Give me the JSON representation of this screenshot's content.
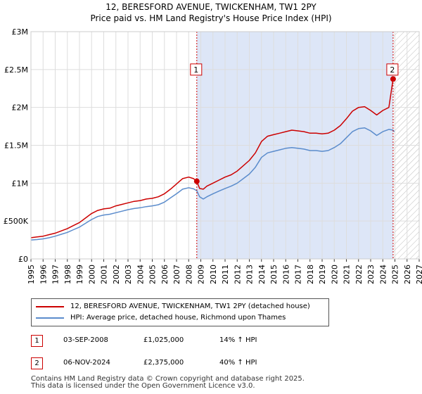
{
  "title_line1": "12, BERESFORD AVENUE, TWICKENHAM, TW1 2PY",
  "title_line2": "Price paid vs. HM Land Registry's House Price Index (HPI)",
  "colors": {
    "property": "#cc0000",
    "hpi": "#5b8ccc",
    "shade": "#dde6f7",
    "grid": "#dddddd"
  },
  "chart_data": {
    "type": "line",
    "title": "12, BERESFORD AVENUE, TWICKENHAM, TW1 2PY — Price paid vs. HM Land Registry's House Price Index (HPI)",
    "xlabel": "",
    "ylabel": "",
    "xlim": [
      1995,
      2027
    ],
    "ylim": [
      0,
      3000000
    ],
    "yticks": [
      {
        "value": 0,
        "label": "£0"
      },
      {
        "value": 500000,
        "label": "£500K"
      },
      {
        "value": 1000000,
        "label": "£1M"
      },
      {
        "value": 1500000,
        "label": "£1.5M"
      },
      {
        "value": 2000000,
        "label": "£2M"
      },
      {
        "value": 2500000,
        "label": "£2.5M"
      },
      {
        "value": 3000000,
        "label": "£3M"
      }
    ],
    "xticks": [
      "1995",
      "1996",
      "1997",
      "1998",
      "1999",
      "2000",
      "2001",
      "2002",
      "2003",
      "2004",
      "2005",
      "2006",
      "2007",
      "2008",
      "2009",
      "2010",
      "2011",
      "2012",
      "2013",
      "2014",
      "2015",
      "2016",
      "2017",
      "2018",
      "2019",
      "2020",
      "2021",
      "2022",
      "2023",
      "2024",
      "2025",
      "2026",
      "2027"
    ],
    "shaded_region": [
      2008.67,
      2024.85
    ],
    "hatched_region": [
      2024.85,
      2027
    ],
    "series": [
      {
        "name": "12, BERESFORD AVENUE, TWICKENHAM, TW1 2PY (detached house)",
        "color": "#cc0000",
        "x": [
          1995,
          1995.5,
          1996,
          1996.5,
          1997,
          1997.5,
          1998,
          1998.5,
          1999,
          1999.5,
          2000,
          2000.5,
          2001,
          2001.5,
          2002,
          2002.5,
          2003,
          2003.5,
          2004,
          2004.5,
          2005,
          2005.5,
          2006,
          2006.5,
          2007,
          2007.5,
          2008,
          2008.4,
          2008.67,
          2008.9,
          2009.2,
          2009.5,
          2010,
          2010.5,
          2011,
          2011.5,
          2012,
          2012.5,
          2013,
          2013.5,
          2014,
          2014.5,
          2015,
          2015.5,
          2016,
          2016.5,
          2017,
          2017.5,
          2018,
          2018.5,
          2019,
          2019.5,
          2020,
          2020.5,
          2021,
          2021.5,
          2022,
          2022.5,
          2023,
          2023.5,
          2024,
          2024.5,
          2024.85,
          2024.95
        ],
        "values": [
          280000,
          290000,
          300000,
          320000,
          340000,
          370000,
          400000,
          440000,
          480000,
          540000,
          600000,
          640000,
          660000,
          670000,
          700000,
          720000,
          740000,
          760000,
          770000,
          790000,
          800000,
          820000,
          860000,
          920000,
          990000,
          1060000,
          1080000,
          1060000,
          1025000,
          930000,
          920000,
          960000,
          1000000,
          1040000,
          1080000,
          1110000,
          1160000,
          1230000,
          1300000,
          1400000,
          1550000,
          1620000,
          1640000,
          1660000,
          1680000,
          1700000,
          1690000,
          1680000,
          1660000,
          1660000,
          1650000,
          1660000,
          1700000,
          1760000,
          1850000,
          1950000,
          2000000,
          2010000,
          1960000,
          1900000,
          1960000,
          2000000,
          2375000,
          2350000
        ]
      },
      {
        "name": "HPI: Average price, detached house, Richmond upon Thames",
        "color": "#5b8ccc",
        "x": [
          1995,
          1995.5,
          1996,
          1996.5,
          1997,
          1997.5,
          1998,
          1998.5,
          1999,
          1999.5,
          2000,
          2000.5,
          2001,
          2001.5,
          2002,
          2002.5,
          2003,
          2003.5,
          2004,
          2004.5,
          2005,
          2005.5,
          2006,
          2006.5,
          2007,
          2007.5,
          2008,
          2008.4,
          2008.67,
          2008.9,
          2009.2,
          2009.5,
          2010,
          2010.5,
          2011,
          2011.5,
          2012,
          2012.5,
          2013,
          2013.5,
          2014,
          2014.5,
          2015,
          2015.5,
          2016,
          2016.5,
          2017,
          2017.5,
          2018,
          2018.5,
          2019,
          2019.5,
          2020,
          2020.5,
          2021,
          2021.5,
          2022,
          2022.5,
          2023,
          2023.5,
          2024,
          2024.5,
          2024.85,
          2024.95
        ],
        "values": [
          250000,
          255000,
          265000,
          280000,
          300000,
          325000,
          350000,
          385000,
          420000,
          470000,
          520000,
          560000,
          580000,
          590000,
          610000,
          630000,
          650000,
          665000,
          675000,
          690000,
          700000,
          715000,
          750000,
          805000,
          860000,
          920000,
          940000,
          925000,
          900000,
          820000,
          790000,
          820000,
          860000,
          895000,
          930000,
          960000,
          1000000,
          1060000,
          1120000,
          1210000,
          1340000,
          1400000,
          1420000,
          1440000,
          1460000,
          1470000,
          1460000,
          1450000,
          1430000,
          1430000,
          1420000,
          1430000,
          1470000,
          1520000,
          1600000,
          1680000,
          1720000,
          1730000,
          1690000,
          1630000,
          1680000,
          1710000,
          1700000,
          1680000
        ]
      }
    ],
    "annotations": [
      {
        "label": "1",
        "x": 2008.67,
        "value": 1025000
      },
      {
        "label": "2",
        "x": 2024.85,
        "value": 2375000
      }
    ]
  },
  "legend": {
    "property": "12, BERESFORD AVENUE, TWICKENHAM, TW1 2PY (detached house)",
    "hpi": "HPI: Average price, detached house, Richmond upon Thames"
  },
  "events": [
    {
      "num": "1",
      "date": "03-SEP-2008",
      "price": "£1,025,000",
      "change": "14% ↑ HPI"
    },
    {
      "num": "2",
      "date": "06-NOV-2024",
      "price": "£2,375,000",
      "change": "40% ↑ HPI"
    }
  ],
  "footer": {
    "line1": "Contains HM Land Registry data © Crown copyright and database right 2025.",
    "line2": "This data is licensed under the Open Government Licence v3.0."
  }
}
